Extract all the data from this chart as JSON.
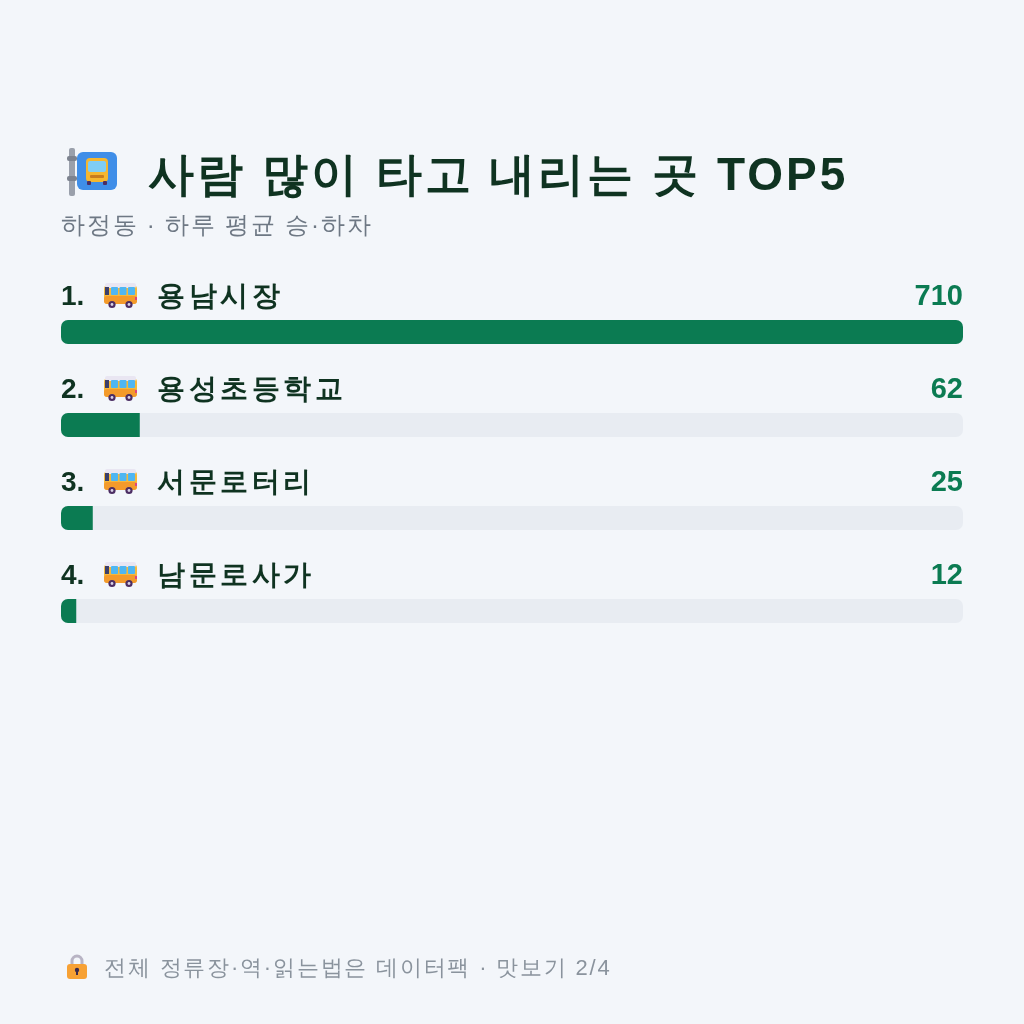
{
  "chart_data": {
    "type": "bar",
    "orientation": "horizontal",
    "title": "사람 많이 타고 내리는 곳 TOP5",
    "subtitle": "하정동 · 하루 평균 승·하차",
    "categories": [
      "1. 용남시장",
      "2. 용성초등학교",
      "3. 서문로터리",
      "4. 남문로사가"
    ],
    "values": [
      710,
      62,
      25,
      12
    ],
    "color": "#0b7b52",
    "xlim": [
      0,
      710
    ],
    "data_labels": true,
    "annotations": [
      "전체 정류장·역·읽는법은 데이터팩 · 맛보기 2/4"
    ]
  }
}
